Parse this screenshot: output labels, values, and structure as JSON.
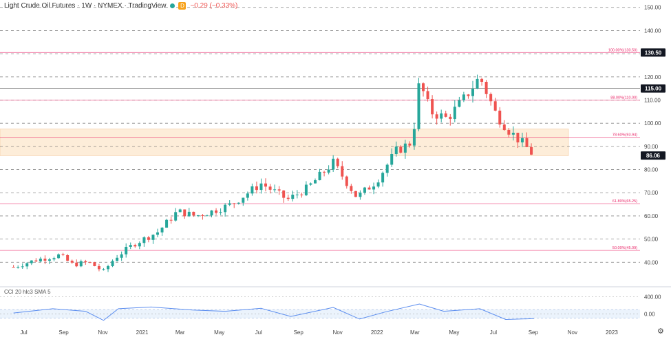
{
  "header": {
    "title": "Light Crude Oil Futures · 1W · NYMEX · TradingView",
    "badge": "D",
    "change": "−0.29 (−0.33%)"
  },
  "indicator": {
    "label": "CCI 20 hlc3 SMA 5"
  },
  "colors": {
    "up": "#26a69a",
    "down": "#ef5350",
    "fib_line": "#e91e63",
    "zone_fill": "#fde8cf",
    "grid": "#555555",
    "cci_line": "#5b8def",
    "cci_band": "#e3eefb"
  },
  "chart_data": {
    "type": "candlestick",
    "title": "Light Crude Oil Futures · 1W · NYMEX · TradingView",
    "y_axis": {
      "ticks": [
        40,
        50,
        60,
        70,
        80,
        90,
        100,
        110,
        120,
        130,
        140,
        150
      ],
      "tick_labels": [
        "40.00",
        "50.00",
        "60.00",
        "70.00",
        "80.00",
        "90.00",
        "100.00",
        "110.00",
        "120.00",
        "130.00",
        "140.00",
        "150.00"
      ],
      "range": [
        30,
        152
      ]
    },
    "x_axis": {
      "labels": [
        "Jul",
        "Sep",
        "Nov",
        "2021",
        "Mar",
        "May",
        "Jul",
        "Sep",
        "Nov",
        "2022",
        "Mar",
        "May",
        "Jul",
        "Sep",
        "Nov",
        "2023"
      ],
      "range": [
        "2020-06",
        "2023-01"
      ]
    },
    "price_labels": [
      {
        "value": 130.5,
        "text": "130.50"
      },
      {
        "value": 115.0,
        "text": "115.00"
      },
      {
        "value": 86.06,
        "text": "86.06"
      }
    ],
    "fib_levels": [
      {
        "value": 130.5,
        "label": "100.00%(130.50)"
      },
      {
        "value": 110.0,
        "label": "88.00%(110.00)"
      },
      {
        "value": 93.94,
        "label": "78.60%(93.94)"
      },
      {
        "value": 65.25,
        "label": "61.80%(65.25)"
      },
      {
        "value": 45.09,
        "label": "50.00%(45.09)"
      }
    ],
    "horizontal_lines": [
      115.0
    ],
    "zone": [
      86.0,
      97.5
    ],
    "anchors": [
      [
        "2020-06-15",
        38
      ],
      [
        "2020-07-20",
        41
      ],
      [
        "2020-08-25",
        43
      ],
      [
        "2020-09-15",
        39
      ],
      [
        "2020-10-10",
        40
      ],
      [
        "2020-11-02",
        36
      ],
      [
        "2020-11-20",
        42
      ],
      [
        "2020-12-20",
        48
      ],
      [
        "2021-01-25",
        53
      ],
      [
        "2021-02-25",
        62
      ],
      [
        "2021-03-25",
        60
      ],
      [
        "2021-04-20",
        62
      ],
      [
        "2021-05-20",
        65
      ],
      [
        "2021-07-05",
        74
      ],
      [
        "2021-08-15",
        67
      ],
      [
        "2021-09-15",
        72
      ],
      [
        "2021-10-25",
        83
      ],
      [
        "2021-12-01",
        68
      ],
      [
        "2021-12-31",
        75
      ],
      [
        "2022-01-31",
        88
      ],
      [
        "2022-02-25",
        92
      ],
      [
        "2022-03-08",
        118
      ],
      [
        "2022-03-25",
        105
      ],
      [
        "2022-04-20",
        102
      ],
      [
        "2022-05-15",
        110
      ],
      [
        "2022-06-10",
        120
      ],
      [
        "2022-07-05",
        104
      ],
      [
        "2022-07-25",
        97
      ],
      [
        "2022-08-20",
        90
      ],
      [
        "2022-09-02",
        86.06
      ]
    ],
    "cci": {
      "label": "CCI 20 hlc3 SMA 5",
      "ticks": [
        400,
        0
      ],
      "tick_labels": [
        "400.00",
        "0.00"
      ],
      "range": [
        -250,
        550
      ],
      "band": [
        -100,
        100
      ],
      "anchors": [
        [
          "2020-06-15",
          20
        ],
        [
          "2020-08-15",
          120
        ],
        [
          "2020-10-05",
          60
        ],
        [
          "2020-11-02",
          -150
        ],
        [
          "2020-11-25",
          120
        ],
        [
          "2021-01-15",
          160
        ],
        [
          "2021-03-20",
          90
        ],
        [
          "2021-05-10",
          60
        ],
        [
          "2021-07-05",
          130
        ],
        [
          "2021-08-20",
          -60
        ],
        [
          "2021-10-25",
          150
        ],
        [
          "2021-12-05",
          -120
        ],
        [
          "2022-01-15",
          50
        ],
        [
          "2022-03-08",
          230
        ],
        [
          "2022-04-15",
          60
        ],
        [
          "2022-06-10",
          120
        ],
        [
          "2022-07-20",
          -130
        ],
        [
          "2022-09-02",
          -110
        ]
      ]
    }
  }
}
